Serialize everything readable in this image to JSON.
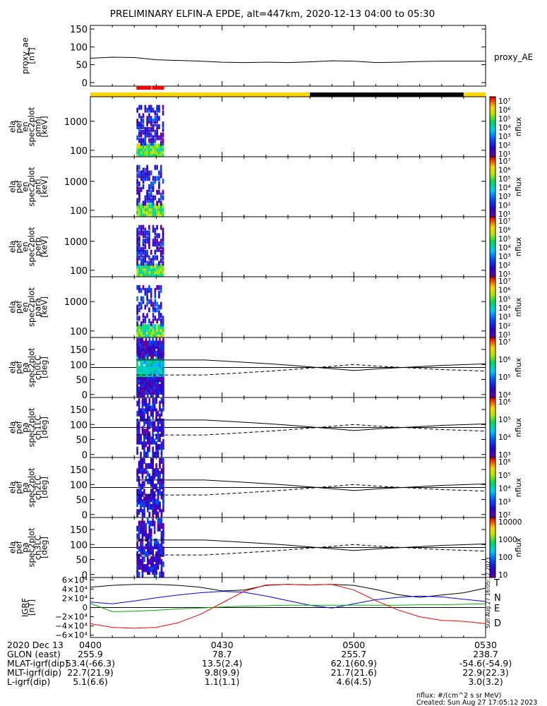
{
  "title": "PRELIMINARY ELFIN-A EPDE, alt=447km, 2020-12-13 04:00 to 05:30",
  "chart_data": [
    {
      "panel": "proxy_ae",
      "type": "line",
      "ylabel": "proxy_ae",
      "yunits": "[nT]",
      "yticks": [
        "150",
        "100",
        "50",
        "0"
      ],
      "ylim": [
        -10,
        160
      ],
      "legend": "proxy_AE",
      "x_minutes": [
        0,
        5,
        10,
        15,
        20,
        25,
        30,
        35,
        40,
        45,
        50,
        55,
        60,
        65,
        70,
        75,
        80,
        85,
        90
      ],
      "values": [
        68,
        71,
        70,
        64,
        62,
        60,
        57,
        56,
        57,
        56,
        58,
        61,
        60,
        56,
        57,
        59,
        60,
        60,
        60
      ]
    },
    {
      "panel": "orbit_status_bar",
      "type": "segments",
      "segments": [
        {
          "from": 0,
          "to": 50,
          "color": "#ffd700"
        },
        {
          "from": 50,
          "to": 85,
          "color": "#000000"
        },
        {
          "from": 85,
          "to": 90,
          "color": "#ffd700"
        }
      ],
      "science_zone_color": "#ff0000",
      "science_zone_minutes": [
        10.5,
        16.8
      ]
    },
    {
      "panel": "ela_pef_en_spec2plot_omni",
      "type": "heatmap",
      "ylabel": "ela pef en spec2plot omni",
      "yunits": "[keV]",
      "ylog": true,
      "yticks": [
        "1000",
        "100"
      ],
      "ylim": [
        60,
        7000
      ],
      "colorbar_label": "nflux",
      "colorbar_ticks": [
        "10⁷",
        "10⁶",
        "10⁵",
        "10⁴",
        "10³",
        "10²",
        "10¹"
      ],
      "data_minutes": [
        10.5,
        16.8
      ]
    },
    {
      "panel": "ela_pef_en_spec2plot_anti",
      "type": "heatmap",
      "ylabel": "ela pef en spec2plot anti",
      "yunits": "[keV]",
      "ylog": true,
      "yticks": [
        "1000",
        "100"
      ],
      "ylim": [
        60,
        7000
      ],
      "colorbar_label": "nflux",
      "colorbar_ticks": [
        "10⁷",
        "10⁶",
        "10⁵",
        "10⁴",
        "10³",
        "10²",
        "10¹"
      ],
      "data_minutes": [
        10.5,
        16.8
      ]
    },
    {
      "panel": "ela_pef_en_spec2plot_perp",
      "type": "heatmap",
      "ylabel": "ela pef en spec2plot perp",
      "yunits": "[keV]",
      "ylog": true,
      "yticks": [
        "1000",
        "100"
      ],
      "ylim": [
        60,
        7000
      ],
      "colorbar_label": "nflux",
      "colorbar_ticks": [
        "10⁷",
        "10⁶",
        "10⁵",
        "10⁴",
        "10³",
        "10²",
        "10¹"
      ],
      "data_minutes": [
        10.5,
        16.8
      ]
    },
    {
      "panel": "ela_pef_en_spec2plot_para",
      "type": "heatmap",
      "ylabel": "ela pef en spec2plot para",
      "yunits": "[keV]",
      "ylog": true,
      "yticks": [
        "1000",
        "100"
      ],
      "ylim": [
        60,
        7000
      ],
      "colorbar_label": "nflux",
      "colorbar_ticks": [
        "10⁷",
        "10⁶",
        "10⁵",
        "10⁴",
        "10³",
        "10²",
        "10¹"
      ],
      "data_minutes": [
        10.5,
        16.8
      ]
    },
    {
      "panel": "ela_pef_pa_spec2plot_ch0LC",
      "type": "heatmap",
      "ylabel": "ela pef pa spec2plot ch0LC",
      "yunits": "[deg]",
      "yticks": [
        "150",
        "100",
        "50",
        "0"
      ],
      "ylim": [
        -10,
        190
      ],
      "colorbar_label": "nflux",
      "colorbar_ticks": [
        "10⁷",
        "10⁶",
        "10⁵",
        "10⁴"
      ],
      "reference_line_deg": 90,
      "data_minutes": [
        10.5,
        16.8
      ],
      "loss_cone_minutes": [
        10.5,
        26,
        33,
        40,
        45,
        50,
        55,
        60,
        65,
        70,
        75,
        80,
        90
      ],
      "loss_cone_deg": [
        115,
        115,
        109,
        103,
        98,
        92,
        86,
        80,
        85,
        89,
        93,
        97,
        102
      ]
    },
    {
      "panel": "ela_pef_pa_spec2plot_ch1LC",
      "type": "heatmap",
      "ylabel": "ela pef pa spec2plot ch1LC",
      "yunits": "[deg]",
      "yticks": [
        "150",
        "100",
        "50",
        "0"
      ],
      "ylim": [
        -10,
        190
      ],
      "colorbar_label": "nflux",
      "colorbar_ticks": [
        "10⁶",
        "10⁵",
        "10⁴",
        "10³"
      ],
      "reference_line_deg": 90,
      "data_minutes": [
        10.5,
        16.8
      ],
      "loss_cone_minutes": [
        10.5,
        26,
        33,
        40,
        45,
        50,
        55,
        60,
        65,
        70,
        75,
        80,
        90
      ],
      "loss_cone_deg": [
        115,
        115,
        109,
        103,
        98,
        92,
        86,
        80,
        85,
        89,
        93,
        97,
        102
      ]
    },
    {
      "panel": "ela_pef_pa_spec2plot_ch2LC",
      "type": "heatmap",
      "ylabel": "ela pef pa spec2plot ch2LC",
      "yunits": "[deg]",
      "yticks": [
        "150",
        "100",
        "50",
        "0"
      ],
      "ylim": [
        -10,
        190
      ],
      "colorbar_label": "nflux",
      "colorbar_ticks": [
        "10⁶",
        "10⁵",
        "10⁴",
        "10³",
        "10²"
      ],
      "reference_line_deg": 90,
      "data_minutes": [
        10.5,
        16.8
      ],
      "loss_cone_minutes": [
        10.5,
        26,
        33,
        40,
        45,
        50,
        55,
        60,
        65,
        70,
        75,
        80,
        90
      ],
      "loss_cone_deg": [
        115,
        115,
        109,
        103,
        98,
        92,
        86,
        80,
        85,
        89,
        93,
        97,
        102
      ]
    },
    {
      "panel": "ela_pef_pa_spec2plot_ch3LC",
      "type": "heatmap",
      "ylabel": "ela pef pa spec2plot ch3LC",
      "yunits": "[deg]",
      "yticks": [
        "150",
        "100",
        "50",
        "0"
      ],
      "ylim": [
        -10,
        190
      ],
      "colorbar_label": "nflux",
      "colorbar_ticks": [
        "10000",
        "1000",
        "100",
        "10"
      ],
      "reference_line_deg": 90,
      "data_minutes": [
        10.5,
        16.8
      ],
      "loss_cone_minutes": [
        10.5,
        26,
        33,
        40,
        45,
        50,
        55,
        60,
        65,
        70,
        75,
        80,
        90
      ],
      "loss_cone_deg": [
        115,
        115,
        109,
        103,
        98,
        92,
        86,
        80,
        85,
        89,
        93,
        97,
        102
      ]
    },
    {
      "panel": "IGRF",
      "type": "line",
      "ylabel": "IGRF",
      "yunits": "[nT]",
      "yticks": [
        "6×10⁴",
        "4×10⁴",
        "2×10⁴",
        "0",
        "−2×10⁴",
        "−4×10⁴",
        "−6×10⁴"
      ],
      "ylim": [
        -65000,
        65000
      ],
      "x_minutes": [
        0,
        5,
        10,
        15,
        20,
        25,
        30,
        35,
        40,
        45,
        50,
        55,
        60,
        65,
        70,
        75,
        80,
        85,
        90
      ],
      "series": [
        {
          "name": "T",
          "color": "#000000",
          "values": [
            44000,
            48000,
            50000,
            50000,
            48000,
            44000,
            36000,
            38000,
            48000,
            50000,
            49000,
            50000,
            48000,
            39000,
            28000,
            22000,
            27000,
            32000,
            42000
          ]
        },
        {
          "name": "N",
          "color": "#0000ff",
          "values": [
            12000,
            8000,
            14000,
            21000,
            27000,
            32000,
            35000,
            33000,
            25000,
            15000,
            5000,
            -1000,
            8000,
            17000,
            22000,
            25000,
            23000,
            18000,
            13000
          ]
        },
        {
          "name": "E",
          "color": "#00b000",
          "values": [
            9000,
            -9000,
            -8000,
            -6000,
            -3000,
            -1000,
            1000,
            3000,
            4000,
            5000,
            5000,
            5000,
            5000,
            5000,
            5000,
            6000,
            6000,
            7000,
            8000
          ]
        },
        {
          "name": "D",
          "color": "#ff0000",
          "values": [
            -35000,
            -43000,
            -45000,
            -43000,
            -33000,
            -15000,
            10000,
            35000,
            49000,
            50000,
            49000,
            50000,
            38000,
            15000,
            -5000,
            -20000,
            -28000,
            -30000,
            -35000
          ]
        }
      ]
    }
  ],
  "x_axis": {
    "row_labels": [
      "2020 Dec 13",
      "GLON (east)",
      "MLAT-igrf(dip)",
      "MLT-igrf(dip)",
      "L-igrf(dip)"
    ],
    "ticks": [
      {
        "minute": 0,
        "time": "0400",
        "values": [
          "255.9",
          "53.4(-66.3)",
          "22.7(21.9)",
          "5.1(6.6)"
        ]
      },
      {
        "minute": 30,
        "time": "0430",
        "values": [
          "78.7",
          "13.5(2.4)",
          "9.8(9.9)",
          "1.1(1.1)"
        ]
      },
      {
        "minute": 60,
        "time": "0500",
        "values": [
          "255.7",
          "62.1(60.9)",
          "21.7(21.6)",
          "4.6(4.5)"
        ]
      },
      {
        "minute": 90,
        "time": "0530",
        "values": [
          "238.7",
          "-54.6(-54.9)",
          "22.9(22.3)",
          "3.0(3.2)"
        ]
      }
    ]
  },
  "footer": {
    "units": "nflux: #/(cm^2 s sr MeV)",
    "created": "Created: Sun Aug 27 17:05:12 2023",
    "side_stamp": "Sun Aug 27 16:05:12 2023"
  }
}
